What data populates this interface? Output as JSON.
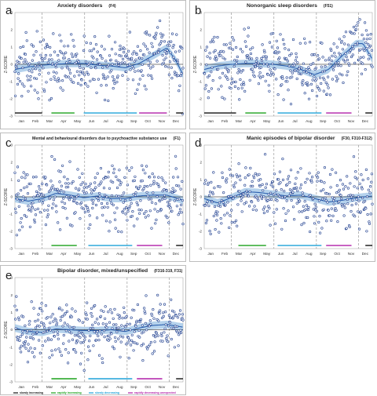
{
  "chart_data": [
    {
      "id": "a",
      "type": "scatter",
      "letter": "a",
      "title": "Anxiety disorders",
      "code": "(F4)",
      "ylabel": "Z-SCORE",
      "ylim": [
        -3,
        3
      ],
      "yticks": [
        3,
        2,
        1,
        0,
        -1,
        -2,
        -3
      ],
      "categories": [
        "Jan",
        "Feb",
        "Mar",
        "Apr",
        "May",
        "Jun",
        "Jul",
        "Aug",
        "Sep",
        "Oct",
        "Nov",
        "Dec"
      ],
      "trend": {
        "x": [
          1,
          30,
          60,
          90,
          120,
          150,
          180,
          210,
          240,
          270,
          300,
          330,
          350,
          365
        ],
        "y": [
          -0.3,
          -0.15,
          -0.05,
          0.0,
          0.05,
          0.05,
          -0.05,
          -0.1,
          -0.2,
          0.05,
          0.5,
          0.95,
          0.2,
          -0.6
        ]
      },
      "scatter_spread": 0.8,
      "segments": [
        {
          "x_start": 1,
          "x_end": 60,
          "color": "#111111"
        },
        {
          "x_start": 80,
          "x_end": 130,
          "color": "#1aa01a"
        },
        {
          "x_start": 150,
          "x_end": 265,
          "color": "#1fa2d8"
        },
        {
          "x_start": 270,
          "x_end": 330,
          "color": "#b01ea8"
        },
        {
          "x_start": 350,
          "x_end": 365,
          "color": "#111111"
        }
      ]
    },
    {
      "id": "b",
      "type": "scatter",
      "letter": "b",
      "title": "Nonorganic sleep disorders",
      "code": "(F51)",
      "ylabel": "Z-SCORE",
      "ylim": [
        -3,
        3
      ],
      "yticks": [
        3,
        2,
        1,
        0,
        -1,
        -2,
        -3
      ],
      "categories": [
        "Jan",
        "Feb",
        "Mar",
        "Apr",
        "May",
        "Jun",
        "Jul",
        "Aug",
        "Sep",
        "Oct",
        "Nov",
        "Dec"
      ],
      "trend": {
        "x": [
          1,
          30,
          60,
          90,
          120,
          150,
          180,
          210,
          240,
          270,
          300,
          330,
          345,
          365
        ],
        "y": [
          -0.3,
          -0.1,
          0.0,
          0.05,
          0.05,
          0.0,
          -0.1,
          -0.3,
          -0.6,
          -0.3,
          0.5,
          1.2,
          1.2,
          0.3
        ]
      },
      "scatter_spread": 0.85,
      "segments": [
        {
          "x_start": 1,
          "x_end": 70,
          "color": "#111111"
        },
        {
          "x_start": 90,
          "x_end": 135,
          "color": "#1aa01a"
        },
        {
          "x_start": 160,
          "x_end": 255,
          "color": "#1fa2d8"
        },
        {
          "x_start": 265,
          "x_end": 320,
          "color": "#b01ea8"
        },
        {
          "x_start": 350,
          "x_end": 365,
          "color": "#111111"
        }
      ]
    },
    {
      "id": "c",
      "type": "scatter",
      "letter": "c",
      "title": "Mental and behavioural disorders due to psychoactive substance use",
      "code": "(F1)",
      "ylabel": "Z-SCORE",
      "ylim": [
        -3,
        3
      ],
      "yticks": [
        3,
        2,
        1,
        0,
        -1,
        -2,
        -3
      ],
      "categories": [
        "Jan",
        "Feb",
        "Mar",
        "Apr",
        "May",
        "Jun",
        "Jul",
        "Aug",
        "Sep",
        "Oct",
        "Nov",
        "Dec"
      ],
      "trend": {
        "x": [
          1,
          30,
          60,
          90,
          120,
          150,
          180,
          210,
          240,
          270,
          300,
          330,
          365
        ],
        "y": [
          -0.1,
          -0.25,
          -0.1,
          0.2,
          0.1,
          -0.05,
          0.05,
          -0.1,
          -0.1,
          0.05,
          0.1,
          0.1,
          -0.2
        ]
      },
      "scatter_spread": 0.9,
      "segments": [
        {
          "x_start": 80,
          "x_end": 135,
          "color": "#1aa01a"
        },
        {
          "x_start": 160,
          "x_end": 255,
          "color": "#1fa2d8"
        },
        {
          "x_start": 265,
          "x_end": 320,
          "color": "#b01ea8"
        },
        {
          "x_start": 350,
          "x_end": 365,
          "color": "#111111"
        }
      ]
    },
    {
      "id": "d",
      "type": "scatter",
      "letter": "d",
      "title": "Manic episodes of bipolar disorder",
      "code": "(F30, F310-F312)",
      "ylabel": "Z-SCORE",
      "ylim": [
        -3,
        3
      ],
      "yticks": [
        3,
        2,
        1,
        0,
        -1,
        -2,
        -3
      ],
      "categories": [
        "Jan",
        "Feb",
        "Mar",
        "Apr",
        "May",
        "Jun",
        "Jul",
        "Aug",
        "Sep",
        "Oct",
        "Nov",
        "Dec"
      ],
      "trend": {
        "x": [
          1,
          30,
          60,
          90,
          120,
          150,
          180,
          210,
          240,
          270,
          300,
          330,
          365
        ],
        "y": [
          -0.1,
          -0.35,
          -0.05,
          0.3,
          0.25,
          0.15,
          0.05,
          0.1,
          -0.1,
          -0.3,
          -0.2,
          -0.05,
          0.05
        ]
      },
      "scatter_spread": 0.9,
      "segments": [
        {
          "x_start": 75,
          "x_end": 135,
          "color": "#1aa01a"
        },
        {
          "x_start": 160,
          "x_end": 255,
          "color": "#1fa2d8"
        },
        {
          "x_start": 265,
          "x_end": 320,
          "color": "#b01ea8"
        },
        {
          "x_start": 350,
          "x_end": 365,
          "color": "#111111"
        }
      ]
    },
    {
      "id": "e",
      "type": "scatter",
      "letter": "e",
      "title": "Bipolar disorder, mixed/unspecified",
      "code": "(F316-319, F31)",
      "ylabel": "Z-SCORE",
      "ylim": [
        -3,
        3
      ],
      "yticks": [
        3,
        2,
        1,
        0,
        -1,
        -2,
        -3
      ],
      "categories": [
        "Jan",
        "Feb",
        "Mar",
        "Apr",
        "May",
        "Jun",
        "Jul",
        "Aug",
        "Sep",
        "Oct",
        "Nov",
        "Dec"
      ],
      "trend": {
        "x": [
          1,
          30,
          60,
          90,
          120,
          150,
          180,
          210,
          240,
          270,
          300,
          330,
          365
        ],
        "y": [
          0.1,
          -0.1,
          -0.15,
          0.05,
          0.0,
          -0.05,
          -0.05,
          0.0,
          -0.1,
          0.1,
          0.25,
          0.3,
          0.15
        ]
      },
      "scatter_spread": 0.85,
      "segments": [
        {
          "x_start": 80,
          "x_end": 135,
          "color": "#1aa01a"
        },
        {
          "x_start": 160,
          "x_end": 255,
          "color": "#1fa2d8"
        },
        {
          "x_start": 265,
          "x_end": 320,
          "color": "#b01ea8"
        },
        {
          "x_start": 350,
          "x_end": 365,
          "color": "#111111"
        }
      ]
    }
  ],
  "legend": [
    {
      "label": "slowly increasing",
      "color": "#111111"
    },
    {
      "label": "rapidly increasing",
      "color": "#1aa01a"
    },
    {
      "label": "slowly decreasing",
      "color": "#1fa2d8"
    },
    {
      "label": "rapidly decreasing unexpected",
      "color": "#b01ea8"
    }
  ],
  "colors": {
    "points": "#1f3f8f",
    "trend_line": "#2b5fae",
    "ci_band": "#9cc3e6",
    "zero_line": "#000000",
    "dashed": "#8a8a8a"
  }
}
